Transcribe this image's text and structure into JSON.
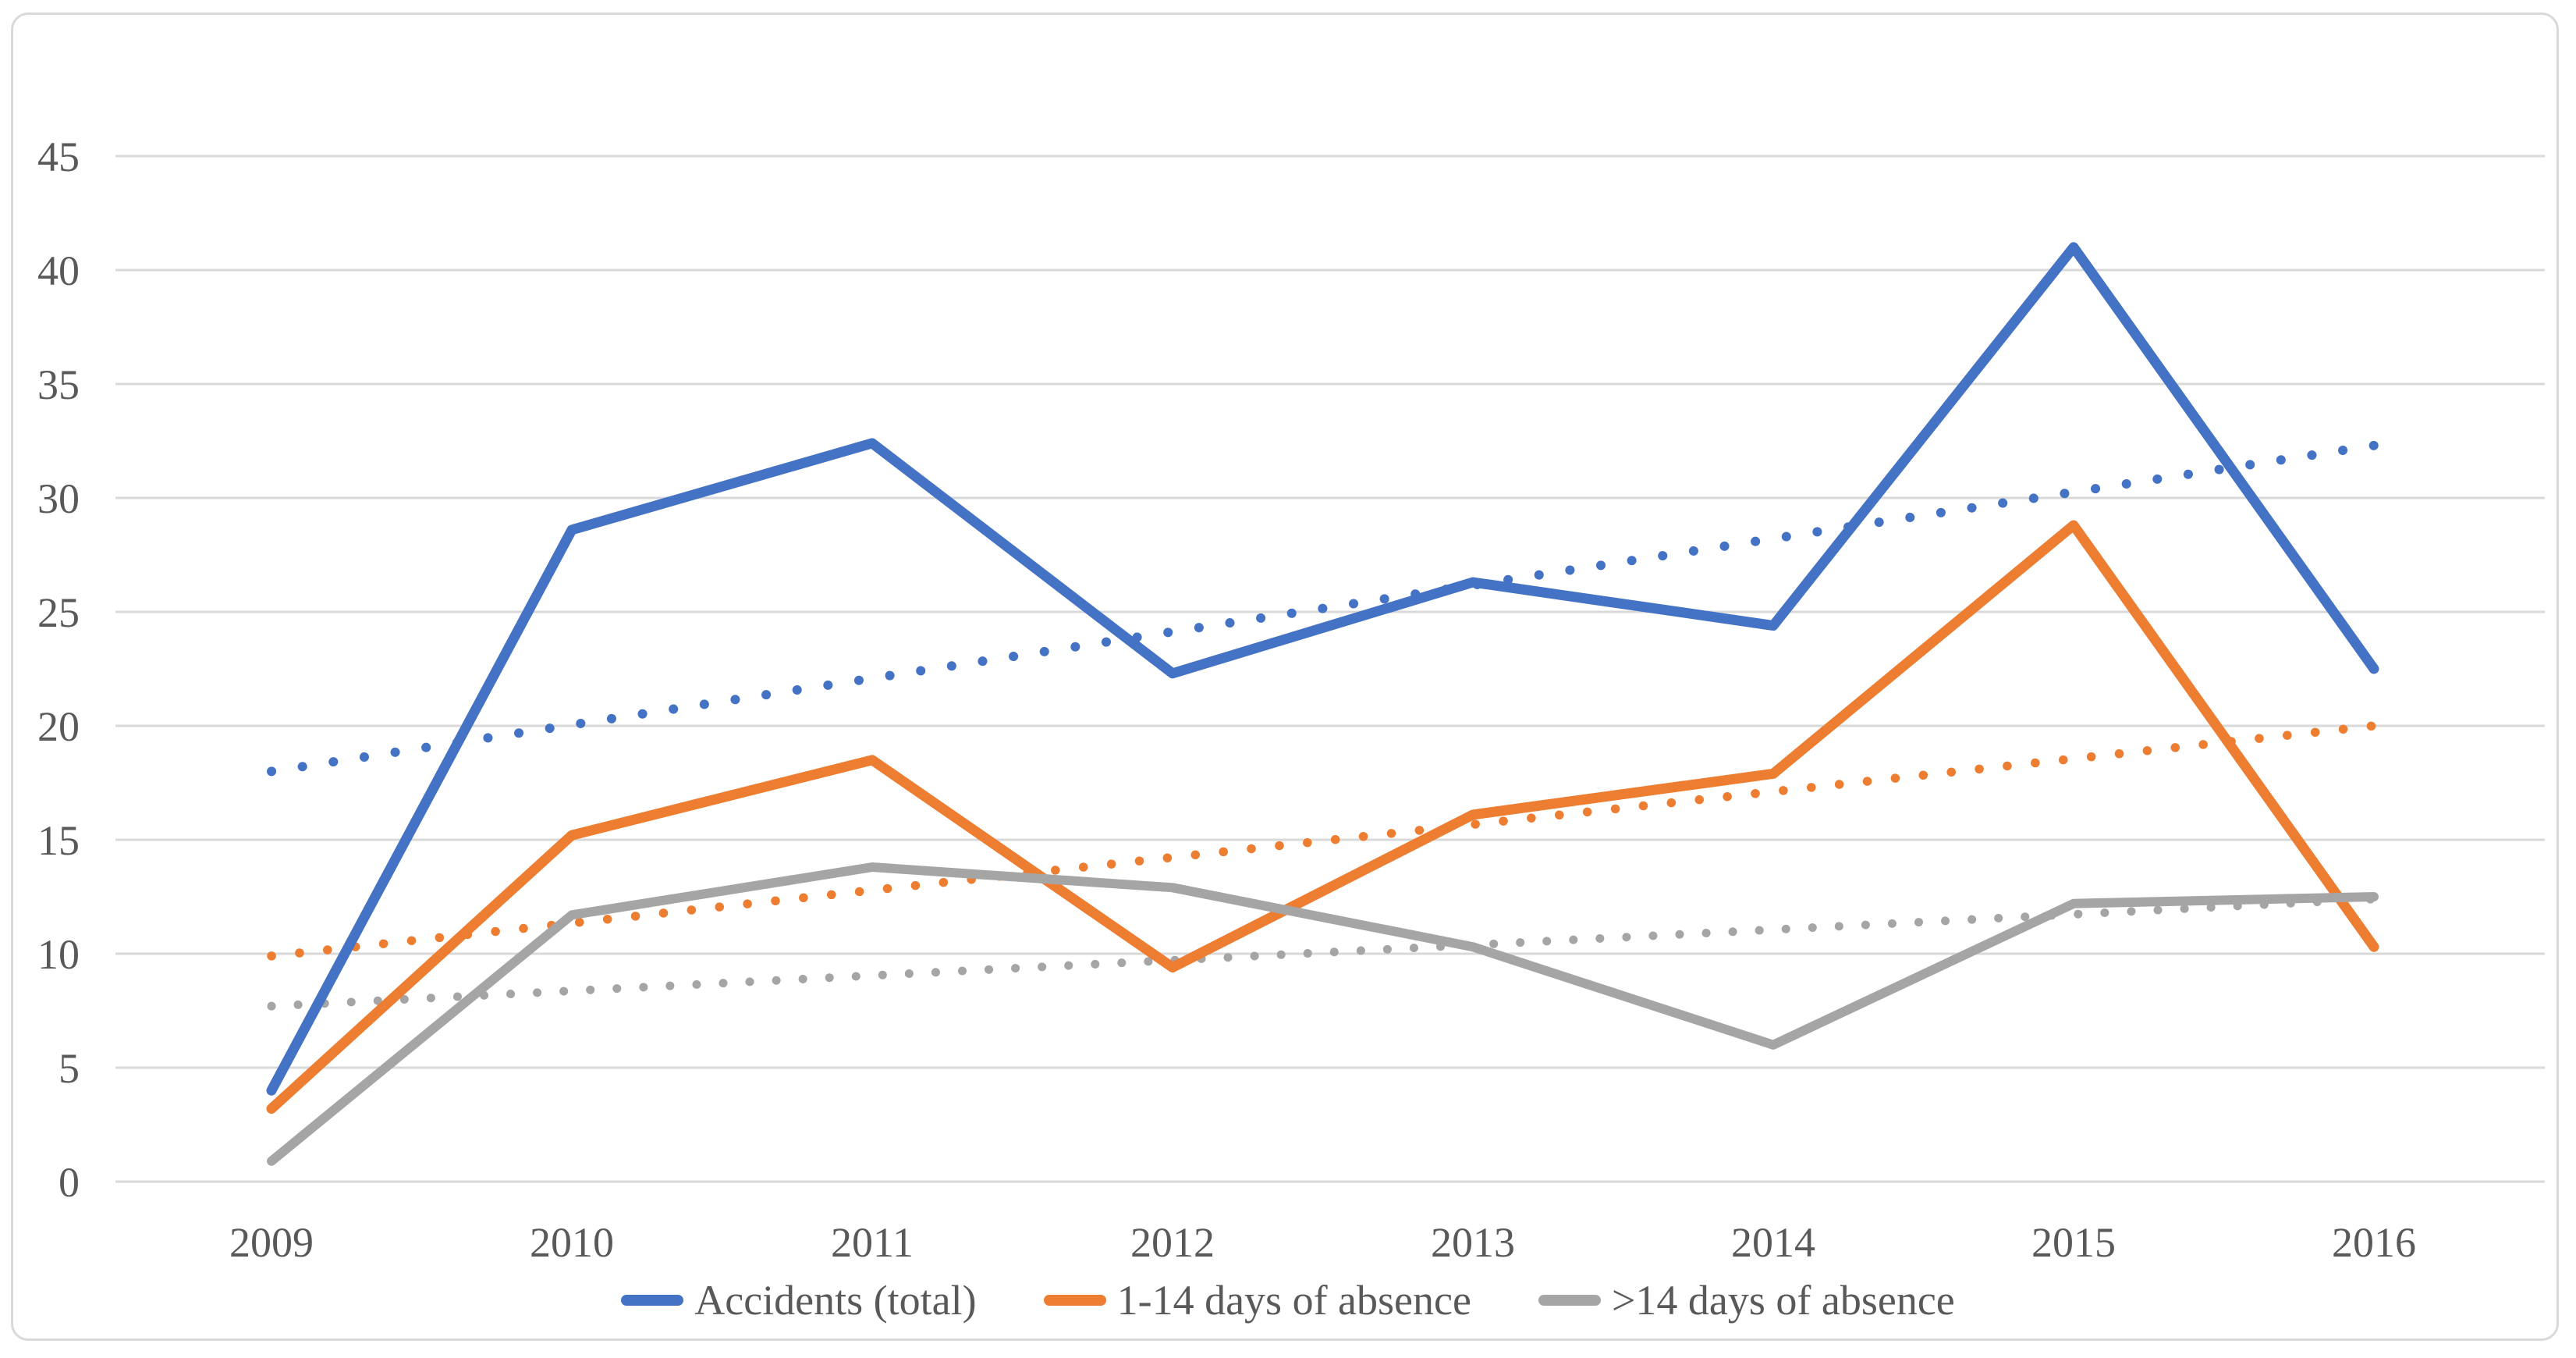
{
  "chart_data": {
    "type": "line",
    "categories": [
      "2009",
      "2010",
      "2011",
      "2012",
      "2013",
      "2014",
      "2015",
      "2016"
    ],
    "y_ticks": [
      0,
      5,
      10,
      15,
      20,
      25,
      30,
      35,
      40,
      45
    ],
    "ylim": [
      0,
      47.5
    ],
    "grid": true,
    "legend_position": "bottom",
    "series": [
      {
        "name": "Accidents (total)",
        "color": "#4472C4",
        "style": "solid",
        "values": [
          4.0,
          28.6,
          32.4,
          22.3,
          26.3,
          24.4,
          41.0,
          22.5
        ]
      },
      {
        "name": "1-14 days of absence",
        "color": "#ED7D31",
        "style": "solid",
        "values": [
          3.2,
          15.2,
          18.5,
          9.4,
          16.1,
          17.9,
          28.8,
          10.3
        ]
      },
      {
        "name": ">14 days of absence",
        "color": "#A5A5A5",
        "style": "solid",
        "values": [
          0.9,
          11.7,
          13.8,
          12.9,
          10.3,
          6.0,
          12.2,
          12.5
        ]
      }
    ],
    "trendlines": [
      {
        "series": "Accidents (total)",
        "color": "#4472C4",
        "style": "dotted",
        "start": 18.0,
        "end": 32.3
      },
      {
        "series": "1-14 days of absence",
        "color": "#ED7D31",
        "style": "dotted",
        "start": 9.9,
        "end": 20.0
      },
      {
        "series": ">14 days of absence",
        "color": "#A5A5A5",
        "style": "dotted",
        "start": 7.7,
        "end": 12.4
      }
    ],
    "colors": {
      "gridline": "#D9D9D9",
      "tick_text": "#595959",
      "frame_border": "#D9D9D9"
    }
  }
}
